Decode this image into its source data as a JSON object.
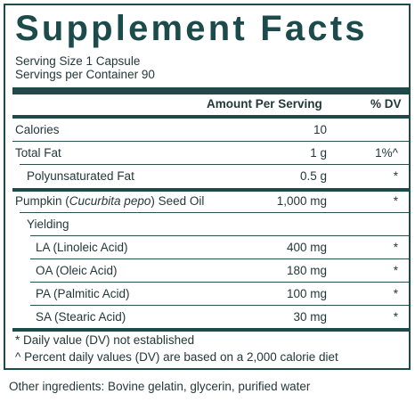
{
  "title": "Supplement Facts",
  "serving_size": "Serving Size 1 Capsule",
  "servings_per_container": "Servings per Container 90",
  "header": {
    "amount": "Amount Per Serving",
    "dv": "% DV"
  },
  "rows": [
    {
      "name": "Calories",
      "amount": "10",
      "dv": ""
    },
    {
      "name": "Total Fat",
      "amount": "1 g",
      "dv": "1%^"
    },
    {
      "name": "Polyunsaturated Fat",
      "amount": "0.5 g",
      "dv": "*"
    },
    {
      "name_prefix": "Pumpkin (",
      "name_italic": "Cucurbita pepo",
      "name_suffix": ") Seed Oil",
      "amount": "1,000 mg",
      "dv": "*"
    },
    {
      "name": "Yielding",
      "amount": "",
      "dv": ""
    },
    {
      "name": "LA (Linoleic Acid)",
      "amount": "400 mg",
      "dv": "*"
    },
    {
      "name": "OA (Oleic Acid)",
      "amount": "180 mg",
      "dv": "*"
    },
    {
      "name": "PA (Palmitic Acid)",
      "amount": "100 mg",
      "dv": "*"
    },
    {
      "name": "SA (Stearic Acid)",
      "amount": "30 mg",
      "dv": "*"
    }
  ],
  "footnotes": [
    "* Daily value (DV) not established",
    "^ Percent daily values (DV) are based on a 2,000 calorie diet"
  ],
  "other_ingredients": "Other ingredients: Bovine gelatin, glycerin, purified water",
  "colors": {
    "accent": "#1d4b4b",
    "text": "#243838",
    "background": "#ffffff"
  }
}
